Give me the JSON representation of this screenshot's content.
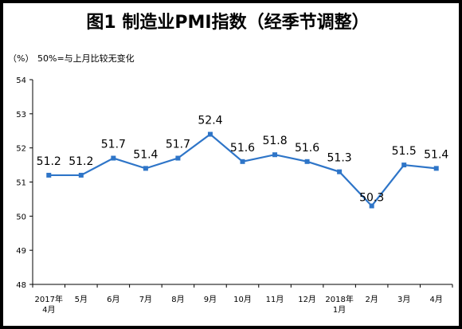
{
  "title": "图1  制造业PMI指数（经季节调整）",
  "unit_label": "（%）",
  "note": "50%=与上月比较无变化",
  "chart_data": {
    "type": "line",
    "title": "图1  制造业PMI指数（经季节调整）",
    "categories": [
      "2017年4月",
      "5月",
      "6月",
      "7月",
      "8月",
      "9月",
      "10月",
      "11月",
      "12月",
      "2018年1月",
      "2月",
      "3月",
      "4月"
    ],
    "category_lines": [
      [
        "2017年",
        "4月"
      ],
      [
        "5月"
      ],
      [
        "6月"
      ],
      [
        "7月"
      ],
      [
        "8月"
      ],
      [
        "9月"
      ],
      [
        "10月"
      ],
      [
        "11月"
      ],
      [
        "12月"
      ],
      [
        "2018年",
        "1月"
      ],
      [
        "2月"
      ],
      [
        "3月"
      ],
      [
        "4月"
      ]
    ],
    "series": [
      {
        "values": [
          51.2,
          51.2,
          51.7,
          51.4,
          51.7,
          52.4,
          51.6,
          51.8,
          51.6,
          51.3,
          50.3,
          51.5,
          51.4
        ]
      }
    ],
    "ylim": [
      48,
      54
    ],
    "yticks": [
      48,
      49,
      50,
      51,
      52,
      53,
      54
    ],
    "xlabel": "",
    "ylabel": "",
    "grid": false,
    "line_color": "#2e75c8"
  }
}
